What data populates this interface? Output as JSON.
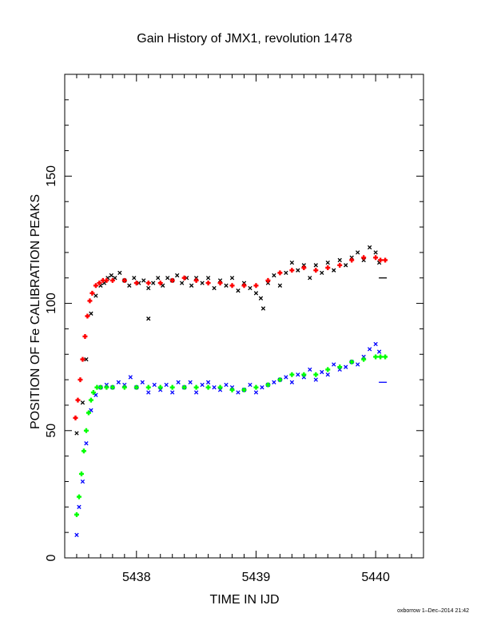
{
  "chart_data": {
    "type": "scatter",
    "title": "Gain History of JMX1, revolution 1478",
    "xlabel": "TIME IN IJD",
    "ylabel": "POSITION OF Fe CALIBRATION PEAKS",
    "xlim": [
      5437.4,
      5440.4
    ],
    "ylim": [
      0,
      190
    ],
    "xticks": [
      5438,
      5439,
      5440
    ],
    "yticks": [
      0,
      50,
      100,
      150
    ],
    "grid": false,
    "legend": "none",
    "series": [
      {
        "key": "upper_measured",
        "marker": "x",
        "color": "#000000",
        "points": [
          [
            5437.5,
            49
          ],
          [
            5437.55,
            61
          ],
          [
            5437.58,
            78
          ],
          [
            5437.62,
            96
          ],
          [
            5437.66,
            103
          ],
          [
            5437.7,
            107
          ],
          [
            5437.73,
            108
          ],
          [
            5437.76,
            110
          ],
          [
            5437.79,
            111
          ],
          [
            5437.82,
            110
          ],
          [
            5437.86,
            112
          ],
          [
            5437.9,
            109
          ],
          [
            5437.94,
            107
          ],
          [
            5437.98,
            110
          ],
          [
            5438.02,
            108
          ],
          [
            5438.06,
            109
          ],
          [
            5438.1,
            106
          ],
          [
            5438.1,
            94
          ],
          [
            5438.14,
            108
          ],
          [
            5438.18,
            110
          ],
          [
            5438.22,
            107
          ],
          [
            5438.26,
            110
          ],
          [
            5438.3,
            109
          ],
          [
            5438.34,
            111
          ],
          [
            5438.38,
            108
          ],
          [
            5438.42,
            110
          ],
          [
            5438.46,
            107
          ],
          [
            5438.5,
            110
          ],
          [
            5438.55,
            108
          ],
          [
            5438.6,
            110
          ],
          [
            5438.65,
            106
          ],
          [
            5438.7,
            109
          ],
          [
            5438.75,
            107
          ],
          [
            5438.8,
            110
          ],
          [
            5438.85,
            105
          ],
          [
            5438.9,
            108
          ],
          [
            5438.95,
            106
          ],
          [
            5439.0,
            104
          ],
          [
            5439.04,
            102
          ],
          [
            5439.06,
            98
          ],
          [
            5439.1,
            108
          ],
          [
            5439.15,
            111
          ],
          [
            5439.2,
            107
          ],
          [
            5439.25,
            112
          ],
          [
            5439.3,
            116
          ],
          [
            5439.35,
            113
          ],
          [
            5439.4,
            115
          ],
          [
            5439.45,
            110
          ],
          [
            5439.5,
            115
          ],
          [
            5439.55,
            112
          ],
          [
            5439.6,
            116
          ],
          [
            5439.65,
            113
          ],
          [
            5439.7,
            117
          ],
          [
            5439.75,
            115
          ],
          [
            5439.8,
            118
          ],
          [
            5439.85,
            120
          ],
          [
            5439.9,
            117
          ],
          [
            5439.95,
            122
          ],
          [
            5440.0,
            120
          ],
          [
            5440.03,
            116
          ]
        ]
      },
      {
        "key": "upper_fit",
        "marker": "+",
        "color": "#ff0000",
        "points": [
          [
            5437.49,
            55
          ],
          [
            5437.51,
            62
          ],
          [
            5437.53,
            70
          ],
          [
            5437.55,
            78
          ],
          [
            5437.57,
            87
          ],
          [
            5437.59,
            95
          ],
          [
            5437.61,
            101
          ],
          [
            5437.63,
            104
          ],
          [
            5437.66,
            107
          ],
          [
            5437.69,
            108
          ],
          [
            5437.72,
            109
          ],
          [
            5437.75,
            109
          ],
          [
            5437.8,
            109
          ],
          [
            5437.9,
            109
          ],
          [
            5438.0,
            108
          ],
          [
            5438.1,
            108
          ],
          [
            5438.2,
            108
          ],
          [
            5438.3,
            109
          ],
          [
            5438.4,
            110
          ],
          [
            5438.5,
            109
          ],
          [
            5438.6,
            108
          ],
          [
            5438.7,
            108
          ],
          [
            5438.8,
            107
          ],
          [
            5438.9,
            107
          ],
          [
            5439.0,
            107
          ],
          [
            5439.1,
            109
          ],
          [
            5439.2,
            112
          ],
          [
            5439.3,
            113
          ],
          [
            5439.4,
            114
          ],
          [
            5439.5,
            113
          ],
          [
            5439.6,
            114
          ],
          [
            5439.7,
            115
          ],
          [
            5439.8,
            117
          ],
          [
            5439.9,
            118
          ],
          [
            5440.0,
            118
          ],
          [
            5440.04,
            117
          ],
          [
            5440.08,
            117
          ]
        ]
      },
      {
        "key": "lower_measured",
        "marker": "x",
        "color": "#0000ff",
        "points": [
          [
            5437.5,
            9
          ],
          [
            5437.52,
            20
          ],
          [
            5437.55,
            30
          ],
          [
            5437.58,
            45
          ],
          [
            5437.62,
            58
          ],
          [
            5437.66,
            64
          ],
          [
            5437.7,
            67
          ],
          [
            5437.75,
            68
          ],
          [
            5437.8,
            67
          ],
          [
            5437.85,
            69
          ],
          [
            5437.9,
            68
          ],
          [
            5437.95,
            71
          ],
          [
            5438.0,
            67
          ],
          [
            5438.05,
            69
          ],
          [
            5438.1,
            65
          ],
          [
            5438.15,
            68
          ],
          [
            5438.2,
            66
          ],
          [
            5438.25,
            68
          ],
          [
            5438.3,
            65
          ],
          [
            5438.35,
            69
          ],
          [
            5438.4,
            67
          ],
          [
            5438.45,
            69
          ],
          [
            5438.5,
            65
          ],
          [
            5438.55,
            68
          ],
          [
            5438.6,
            69
          ],
          [
            5438.65,
            67
          ],
          [
            5438.7,
            66
          ],
          [
            5438.75,
            68
          ],
          [
            5438.8,
            67
          ],
          [
            5438.85,
            65
          ],
          [
            5438.9,
            66
          ],
          [
            5438.95,
            68
          ],
          [
            5439.0,
            65
          ],
          [
            5439.05,
            67
          ],
          [
            5439.1,
            68
          ],
          [
            5439.15,
            69
          ],
          [
            5439.2,
            70
          ],
          [
            5439.25,
            71
          ],
          [
            5439.3,
            69
          ],
          [
            5439.35,
            72
          ],
          [
            5439.4,
            71
          ],
          [
            5439.45,
            74
          ],
          [
            5439.5,
            70
          ],
          [
            5439.55,
            73
          ],
          [
            5439.6,
            72
          ],
          [
            5439.65,
            76
          ],
          [
            5439.7,
            74
          ],
          [
            5439.75,
            75
          ],
          [
            5439.8,
            77
          ],
          [
            5439.85,
            76
          ],
          [
            5439.9,
            79
          ],
          [
            5439.95,
            82
          ],
          [
            5440.0,
            84
          ],
          [
            5440.03,
            81
          ]
        ]
      },
      {
        "key": "lower_fit",
        "marker": "+",
        "color": "#00ff00",
        "points": [
          [
            5437.5,
            17
          ],
          [
            5437.52,
            24
          ],
          [
            5437.54,
            33
          ],
          [
            5437.56,
            42
          ],
          [
            5437.58,
            50
          ],
          [
            5437.6,
            57
          ],
          [
            5437.62,
            62
          ],
          [
            5437.64,
            65
          ],
          [
            5437.67,
            67
          ],
          [
            5437.7,
            67
          ],
          [
            5437.75,
            67
          ],
          [
            5437.8,
            67
          ],
          [
            5437.9,
            67
          ],
          [
            5438.0,
            67
          ],
          [
            5438.1,
            67
          ],
          [
            5438.2,
            67
          ],
          [
            5438.3,
            67
          ],
          [
            5438.4,
            67
          ],
          [
            5438.5,
            67
          ],
          [
            5438.6,
            67
          ],
          [
            5438.7,
            67
          ],
          [
            5438.8,
            66
          ],
          [
            5438.9,
            66
          ],
          [
            5439.0,
            67
          ],
          [
            5439.1,
            68
          ],
          [
            5439.2,
            70
          ],
          [
            5439.3,
            72
          ],
          [
            5439.4,
            72
          ],
          [
            5439.5,
            72
          ],
          [
            5439.6,
            74
          ],
          [
            5439.7,
            75
          ],
          [
            5439.8,
            77
          ],
          [
            5439.9,
            78
          ],
          [
            5440.0,
            79
          ],
          [
            5440.04,
            79
          ],
          [
            5440.08,
            79
          ]
        ]
      },
      {
        "key": "upper_dash",
        "marker": "-",
        "color": "#000000",
        "points": [
          [
            5440.06,
            110
          ]
        ]
      },
      {
        "key": "lower_dash",
        "marker": "-",
        "color": "#0000ff",
        "points": [
          [
            5440.06,
            69
          ]
        ]
      }
    ]
  },
  "credit": "oxborrow  1–Dec–2014 21:42"
}
